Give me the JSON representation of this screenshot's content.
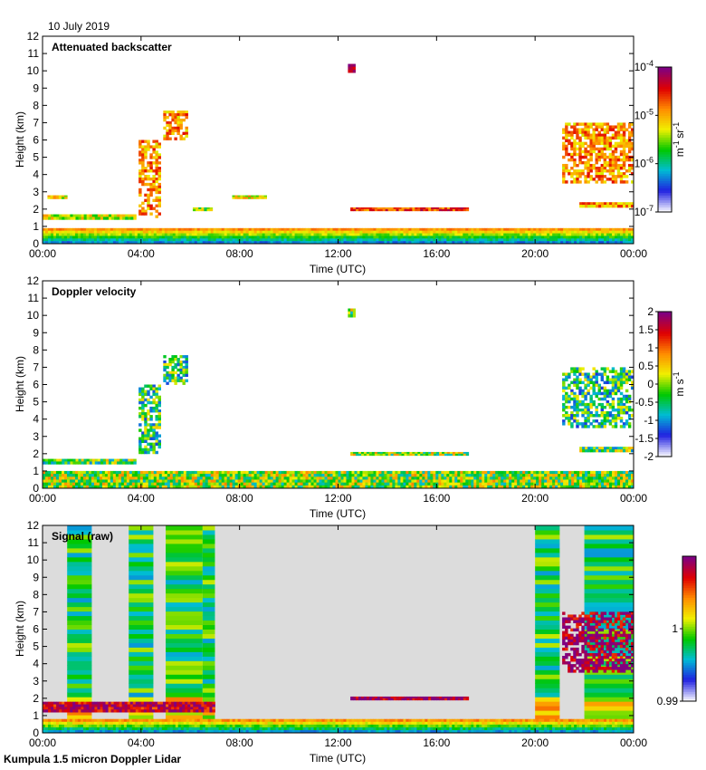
{
  "date_label": "10 July 2019",
  "footer": "Kumpula 1.5 micron Doppler Lidar",
  "colors": {
    "signal_background": "#dcdcdc",
    "axis": "#000000",
    "colormap": [
      "#f4f4ff",
      "#2020e0",
      "#00bcd4",
      "#00c800",
      "#f0f000",
      "#ff8c00",
      "#e00000",
      "#800080"
    ]
  },
  "chart_data": [
    {
      "type": "heatmap",
      "title": "Attenuated backscatter",
      "xlabel": "Time (UTC)",
      "ylabel": "Height (km)",
      "x_ticks": [
        "00:00",
        "04:00",
        "08:00",
        "12:00",
        "16:00",
        "20:00",
        "00:00"
      ],
      "x_range_hours": [
        0,
        24
      ],
      "y_ticks": [
        "0",
        "1",
        "2",
        "3",
        "4",
        "5",
        "6",
        "7",
        "8",
        "9",
        "10",
        "11",
        "12"
      ],
      "ylim": [
        0,
        12
      ],
      "colorbar": {
        "scale": "log",
        "range": [
          1e-07,
          0.0001
        ],
        "tick_labels": [
          "10^-7",
          "10^-6",
          "10^-5",
          "10^-4"
        ],
        "unit": "m^-1 sr^-1"
      },
      "features": [
        {
          "name": "boundary layer",
          "t_start": 0,
          "t_end": 24,
          "h_base": 0,
          "h_top": 0.9,
          "level": 0.35
        },
        {
          "name": "low cloud",
          "t_start": 0,
          "t_end": 3.8,
          "h_base": 1.4,
          "h_top": 1.7,
          "level": 0.55
        },
        {
          "name": "cloud 2.7km",
          "t_start": 0.2,
          "t_end": 1.0,
          "h_base": 2.6,
          "h_top": 2.8,
          "level": 0.6
        },
        {
          "name": "convective column",
          "t_start": 3.9,
          "t_end": 4.8,
          "h_base": 1.5,
          "h_top": 6.0,
          "level": 0.7
        },
        {
          "name": "cloud 7km",
          "t_start": 4.9,
          "t_end": 5.9,
          "h_base": 6.0,
          "h_top": 7.7,
          "level": 0.7
        },
        {
          "name": "cloud 2.7km b",
          "t_start": 7.7,
          "t_end": 9.1,
          "h_base": 2.6,
          "h_top": 2.8,
          "level": 0.6
        },
        {
          "name": "cloud 2km",
          "t_start": 6.1,
          "t_end": 6.9,
          "h_base": 1.9,
          "h_top": 2.1,
          "level": 0.5
        },
        {
          "name": "cirrus speck",
          "t_start": 12.4,
          "t_end": 12.7,
          "h_base": 9.9,
          "h_top": 10.4,
          "level": 0.9
        },
        {
          "name": "layer 2km",
          "t_start": 12.5,
          "t_end": 17.3,
          "h_base": 1.9,
          "h_top": 2.1,
          "level": 0.8
        },
        {
          "name": "upper cloud",
          "t_start": 21.1,
          "t_end": 24,
          "h_base": 3.5,
          "h_top": 7.0,
          "level": 0.7
        },
        {
          "name": "layer 2.2km",
          "t_start": 21.8,
          "t_end": 24,
          "h_base": 2.1,
          "h_top": 2.4,
          "level": 0.7
        }
      ]
    },
    {
      "type": "heatmap",
      "title": "Doppler velocity",
      "xlabel": "Time (UTC)",
      "ylabel": "Height (km)",
      "x_ticks": [
        "00:00",
        "04:00",
        "08:00",
        "12:00",
        "16:00",
        "20:00",
        "00:00"
      ],
      "x_range_hours": [
        0,
        24
      ],
      "y_ticks": [
        "0",
        "1",
        "2",
        "3",
        "4",
        "5",
        "6",
        "7",
        "8",
        "9",
        "10",
        "11",
        "12"
      ],
      "ylim": [
        0,
        12
      ],
      "colorbar": {
        "scale": "linear",
        "range": [
          -2,
          2
        ],
        "tick_labels": [
          "-2",
          "-1.5",
          "-1",
          "-0.5",
          "0",
          "0.5",
          "1",
          "1.5",
          "2"
        ],
        "unit": "m s^-1"
      },
      "features": [
        {
          "name": "boundary layer",
          "t_start": 0,
          "t_end": 24,
          "h_base": 0,
          "h_top": 1.0,
          "level": 0.5
        },
        {
          "name": "low cloud",
          "t_start": 0,
          "t_end": 3.8,
          "h_base": 1.4,
          "h_top": 1.7,
          "level": 0.45
        },
        {
          "name": "convective column",
          "t_start": 3.9,
          "t_end": 4.8,
          "h_base": 2.0,
          "h_top": 6.0,
          "level": 0.4
        },
        {
          "name": "cloud 7km",
          "t_start": 4.9,
          "t_end": 5.9,
          "h_base": 6.0,
          "h_top": 7.7,
          "level": 0.4
        },
        {
          "name": "cirrus speck",
          "t_start": 12.4,
          "t_end": 12.7,
          "h_base": 9.9,
          "h_top": 10.4,
          "level": 0.5
        },
        {
          "name": "layer 2km",
          "t_start": 12.5,
          "t_end": 17.3,
          "h_base": 1.9,
          "h_top": 2.1,
          "level": 0.5
        },
        {
          "name": "upper cloud",
          "t_start": 21.1,
          "t_end": 24,
          "h_base": 3.5,
          "h_top": 7.0,
          "level": 0.38
        },
        {
          "name": "layer 2.2km",
          "t_start": 21.8,
          "t_end": 24,
          "h_base": 2.1,
          "h_top": 2.4,
          "level": 0.45
        }
      ]
    },
    {
      "type": "heatmap",
      "title": "Signal (raw)",
      "xlabel": "Time (UTC)",
      "ylabel": "Height (km)",
      "x_ticks": [
        "00:00",
        "04:00",
        "08:00",
        "12:00",
        "16:00",
        "20:00",
        "00:00"
      ],
      "x_range_hours": [
        0,
        24
      ],
      "y_ticks": [
        "0",
        "1",
        "2",
        "3",
        "4",
        "5",
        "6",
        "7",
        "8",
        "9",
        "10",
        "11",
        "12"
      ],
      "ylim": [
        0,
        12
      ],
      "colorbar": {
        "scale": "linear",
        "range": [
          0.99,
          1.01
        ],
        "tick_labels": [
          "0.99",
          "1"
        ],
        "unit": ""
      },
      "noisy_periods_hours": [
        {
          "t_start": 1.0,
          "t_end": 2.0
        },
        {
          "t_start": 3.5,
          "t_end": 4.5
        },
        {
          "t_start": 5.0,
          "t_end": 6.5
        },
        {
          "t_start": 6.5,
          "t_end": 7.0
        },
        {
          "t_start": 20.0,
          "t_end": 21.0
        },
        {
          "t_start": 22.0,
          "t_end": 24.0
        }
      ],
      "features": [
        {
          "name": "boundary layer",
          "t_start": 0,
          "t_end": 24,
          "h_base": 0,
          "h_top": 0.8,
          "level": 0.95
        },
        {
          "name": "low cloud",
          "t_start": 0,
          "t_end": 7.0,
          "h_base": 1.2,
          "h_top": 1.8,
          "level": 0.9
        },
        {
          "name": "layer 2km",
          "t_start": 12.5,
          "t_end": 17.3,
          "h_base": 1.9,
          "h_top": 2.1,
          "level": 0.95
        },
        {
          "name": "upper cloud",
          "t_start": 21.1,
          "t_end": 24,
          "h_base": 3.5,
          "h_top": 7.0,
          "level": 0.95
        }
      ]
    }
  ]
}
